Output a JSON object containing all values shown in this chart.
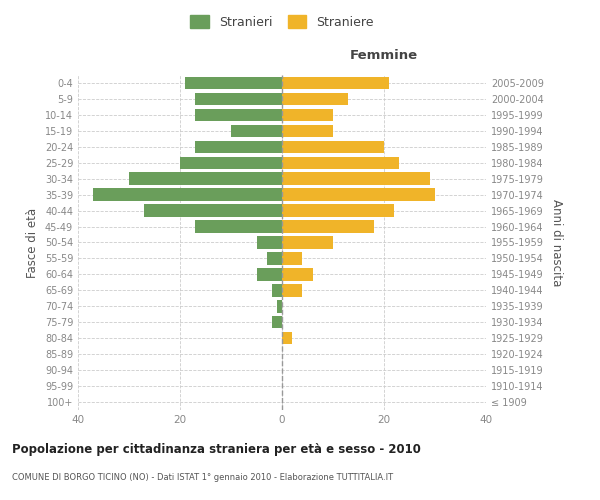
{
  "age_groups": [
    "100+",
    "95-99",
    "90-94",
    "85-89",
    "80-84",
    "75-79",
    "70-74",
    "65-69",
    "60-64",
    "55-59",
    "50-54",
    "45-49",
    "40-44",
    "35-39",
    "30-34",
    "25-29",
    "20-24",
    "15-19",
    "10-14",
    "5-9",
    "0-4"
  ],
  "birth_years": [
    "≤ 1909",
    "1910-1914",
    "1915-1919",
    "1920-1924",
    "1925-1929",
    "1930-1934",
    "1935-1939",
    "1940-1944",
    "1945-1949",
    "1950-1954",
    "1955-1959",
    "1960-1964",
    "1965-1969",
    "1970-1974",
    "1975-1979",
    "1980-1984",
    "1985-1989",
    "1990-1994",
    "1995-1999",
    "2000-2004",
    "2005-2009"
  ],
  "males": [
    0,
    0,
    0,
    0,
    0,
    2,
    1,
    2,
    5,
    3,
    5,
    17,
    27,
    37,
    30,
    20,
    17,
    10,
    17,
    17,
    19
  ],
  "females": [
    0,
    0,
    0,
    0,
    2,
    0,
    0,
    4,
    6,
    4,
    10,
    18,
    22,
    30,
    29,
    23,
    20,
    10,
    10,
    13,
    21
  ],
  "male_color": "#6a9e5b",
  "female_color": "#f0b429",
  "bar_height": 0.78,
  "xlim": 40,
  "title": "Popolazione per cittadinanza straniera per età e sesso - 2010",
  "subtitle": "COMUNE DI BORGO TICINO (NO) - Dati ISTAT 1° gennaio 2010 - Elaborazione TUTTITALIA.IT",
  "xlabel_right": "Femmine",
  "ylabel_left": "Fasce di età",
  "ylabel_right": "Anni di nascita",
  "legend_male": "Stranieri",
  "legend_female": "Straniere",
  "background_color": "#ffffff",
  "grid_color": "#cccccc",
  "axis_label_color": "#555555",
  "tick_label_color": "#888888"
}
